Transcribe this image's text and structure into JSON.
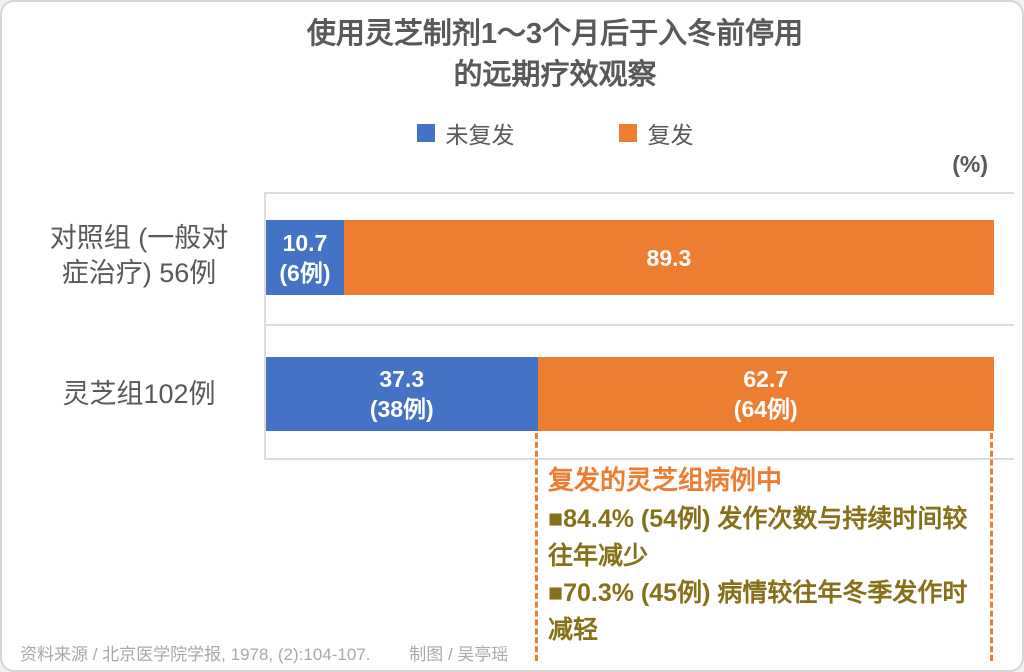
{
  "chart_data": {
    "type": "bar",
    "variant": "100-percent-stacked-horizontal",
    "title": "使用灵芝制剂1～3个月后于入冬前停用的远期疗效观察",
    "xlabel": "",
    "ylabel": "",
    "unit": "(%)",
    "xlim": [
      0,
      100
    ],
    "grid": "category-boundary-lines",
    "legend_position": "top",
    "categories": [
      "对照组 (一般对症治疗) 56例",
      "灵芝组102例"
    ],
    "series": [
      {
        "name": "未复发",
        "color": "#4472C4",
        "values": [
          10.7,
          37.3
        ],
        "counts": [
          "6例",
          "38例"
        ]
      },
      {
        "name": "复发",
        "color": "#ED7D31",
        "values": [
          89.3,
          62.7
        ],
        "counts": [
          null,
          "64例"
        ]
      }
    ]
  },
  "title": {
    "line1": "使用灵芝制剂1～3个月后于入冬前停用",
    "line2": "的远期疗效观察"
  },
  "legend": {
    "items": [
      {
        "label": "未复发",
        "color": "#4472C4"
      },
      {
        "label": "复发",
        "color": "#ED7D31"
      }
    ]
  },
  "unit_label": "(%)",
  "rows": [
    {
      "label_line1": "对照组 (一般对",
      "label_line2": "症治疗) 56例",
      "segments": [
        {
          "pct": 10.7,
          "color": "#4472C4",
          "line1": "10.7",
          "line2": "(6例)"
        },
        {
          "pct": 89.3,
          "color": "#ED7D31",
          "line1": "89.3",
          "line2": ""
        }
      ]
    },
    {
      "label_line1": "灵芝组102例",
      "label_line2": "",
      "segments": [
        {
          "pct": 37.3,
          "color": "#4472C4",
          "line1": "37.3",
          "line2": "(38例)"
        },
        {
          "pct": 62.7,
          "color": "#ED7D31",
          "line1": "62.7",
          "line2": "(64例)"
        }
      ]
    }
  ],
  "annotation": {
    "heading": "复发的灵芝组病例中",
    "items": [
      "■84.4% (54例) 发作次数与持续时间较往年减少",
      "■70.3% (45例) 病情较往年冬季发作时减轻"
    ],
    "border_color": "#ED7D31",
    "text_color": "#877118"
  },
  "footer": {
    "source": "资料来源 / 北京医学院学报, 1978, (2):104-107.",
    "credit": "制图 / 吴亭瑶"
  },
  "colors": {
    "blue": "#4472C4",
    "orange": "#ED7D31",
    "gridline": "#dcdcdc",
    "text_gray": "#595959",
    "footer_gray": "#a9a9a9"
  }
}
